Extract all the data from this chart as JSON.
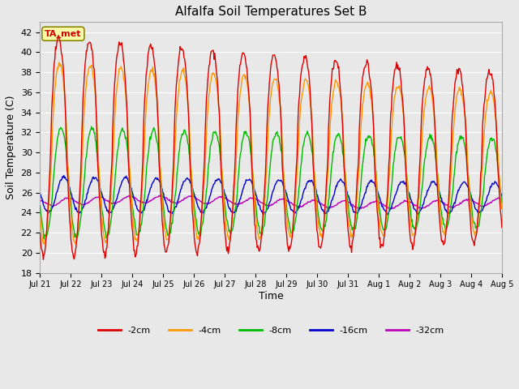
{
  "title": "Alfalfa Soil Temperatures Set B",
  "xlabel": "Time",
  "ylabel": "Soil Temperature (C)",
  "ylim": [
    18,
    43
  ],
  "yticks": [
    18,
    20,
    22,
    24,
    26,
    28,
    30,
    32,
    34,
    36,
    38,
    40,
    42
  ],
  "fig_bg_color": "#e8e8e8",
  "plot_bg_color": "#e8e8e8",
  "line_colors": {
    "-2cm": "#dd0000",
    "-4cm": "#ff9900",
    "-8cm": "#00bb00",
    "-16cm": "#0000cc",
    "-32cm": "#bb00bb"
  },
  "legend_labels": [
    "-2cm",
    "-4cm",
    "-8cm",
    "-16cm",
    "-32cm"
  ],
  "ta_met_box_color": "#ffffaa",
  "ta_met_text_color": "#cc0000",
  "xtick_labels": [
    "Jul 21",
    "Jul 22",
    "Jul 23",
    "Jul 24",
    "Jul 25",
    "Jul 26",
    "Jul 27",
    "Jul 28",
    "Jul 29",
    "Jul 30",
    "Jul 31",
    "Aug 1",
    "Aug 2",
    "Aug 3",
    "Aug 4",
    "Aug 5"
  ],
  "days": 15.0,
  "points_per_day": 48
}
